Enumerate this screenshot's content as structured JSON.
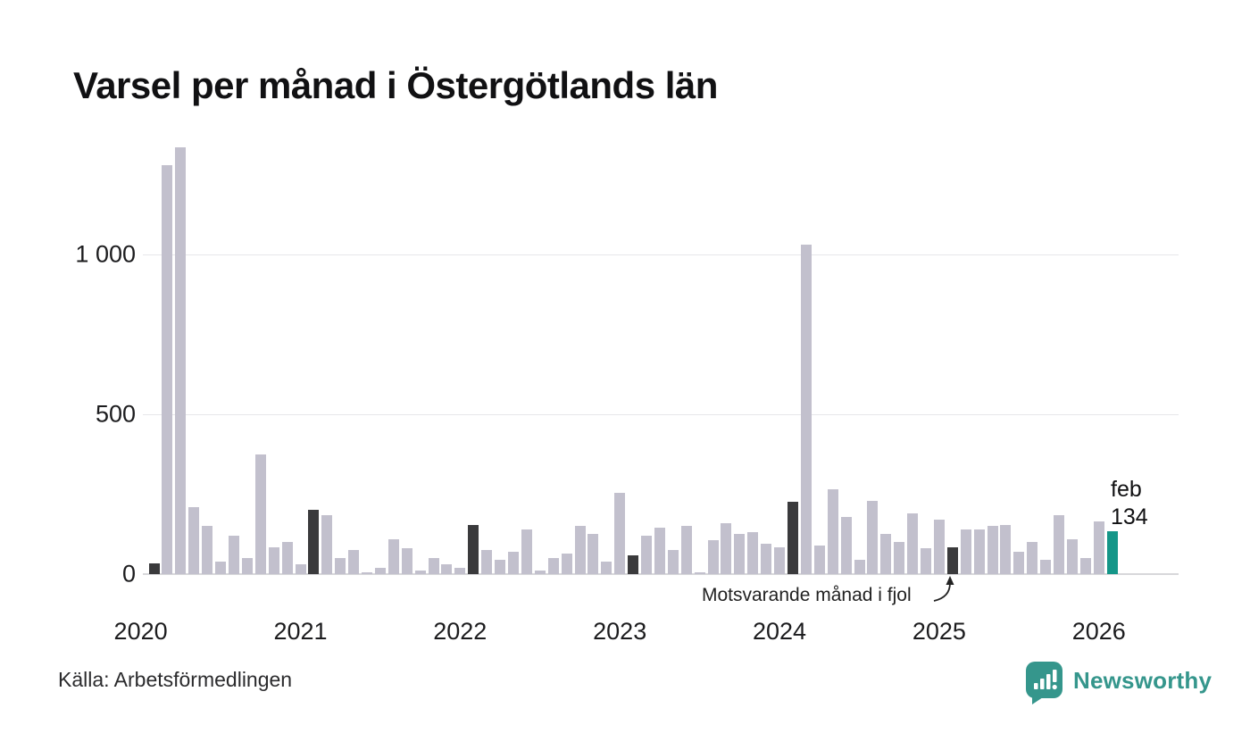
{
  "title": "Varsel per månad i Östergötlands län",
  "source": "Källa: Arbetsförmedlingen",
  "brand": {
    "name": "Newsworthy"
  },
  "annotation": {
    "text": "Motsvarande månad i fjol"
  },
  "current_label": {
    "month": "feb",
    "value": "134"
  },
  "colors": {
    "bar": "#c2c0cd",
    "highlight": "#3a3a3c",
    "current": "#149688",
    "grid": "#e7e7ea",
    "axis": "#d7d7da",
    "brand": "#35968c"
  },
  "y_axis": {
    "ticks": [
      {
        "label": "0",
        "value": 0
      },
      {
        "label": "500",
        "value": 500
      },
      {
        "label": "1 000",
        "value": 1000
      }
    ]
  },
  "x_axis": {
    "years": [
      "2020",
      "2021",
      "2022",
      "2023",
      "2024",
      "2025",
      "2026"
    ]
  },
  "chart_data": {
    "type": "bar",
    "title": "Varsel per månad i Östergötlands län",
    "xlabel": "",
    "ylabel": "",
    "ylim": [
      0,
      1380
    ],
    "yticks": [
      0,
      500,
      1000
    ],
    "grid": "horizontal",
    "legend": "none",
    "highlight_rule": "February of each year shown dark; current month (feb 2026) shown teal with data label",
    "highlight_indices": [
      0,
      12,
      24,
      36,
      48,
      60
    ],
    "current_index": 72,
    "annotation": "Motsvarande månad i fjol (arrow points to feb 2025 bar)",
    "months": [
      "2020-02",
      "2020-03",
      "2020-04",
      "2020-05",
      "2020-06",
      "2020-07",
      "2020-08",
      "2020-09",
      "2020-10",
      "2020-11",
      "2020-12",
      "2021-01",
      "2021-02",
      "2021-03",
      "2021-04",
      "2021-05",
      "2021-06",
      "2021-07",
      "2021-08",
      "2021-09",
      "2021-10",
      "2021-11",
      "2021-12",
      "2022-01",
      "2022-02",
      "2022-03",
      "2022-04",
      "2022-05",
      "2022-06",
      "2022-07",
      "2022-08",
      "2022-09",
      "2022-10",
      "2022-11",
      "2022-12",
      "2023-01",
      "2023-02",
      "2023-03",
      "2023-04",
      "2023-05",
      "2023-06",
      "2023-07",
      "2023-08",
      "2023-09",
      "2023-10",
      "2023-11",
      "2023-12",
      "2024-01",
      "2024-02",
      "2024-03",
      "2024-04",
      "2024-05",
      "2024-06",
      "2024-07",
      "2024-08",
      "2024-09",
      "2024-10",
      "2024-11",
      "2024-12",
      "2025-01",
      "2025-02",
      "2025-03",
      "2025-04",
      "2025-05",
      "2025-06",
      "2025-07",
      "2025-08",
      "2025-09",
      "2025-10",
      "2025-11",
      "2025-12",
      "2026-01",
      "2026-02"
    ],
    "values": [
      35,
      1280,
      1335,
      210,
      150,
      40,
      120,
      50,
      375,
      85,
      100,
      30,
      200,
      185,
      50,
      75,
      5,
      20,
      110,
      80,
      10,
      50,
      30,
      20,
      155,
      75,
      45,
      70,
      140,
      10,
      50,
      65,
      150,
      125,
      40,
      255,
      60,
      120,
      145,
      75,
      150,
      5,
      105,
      160,
      125,
      130,
      95,
      85,
      225,
      1030,
      90,
      265,
      180,
      45,
      230,
      125,
      100,
      190,
      80,
      170,
      85,
      140,
      140,
      150,
      155,
      70,
      100,
      45,
      185,
      110,
      50,
      165,
      134
    ]
  }
}
